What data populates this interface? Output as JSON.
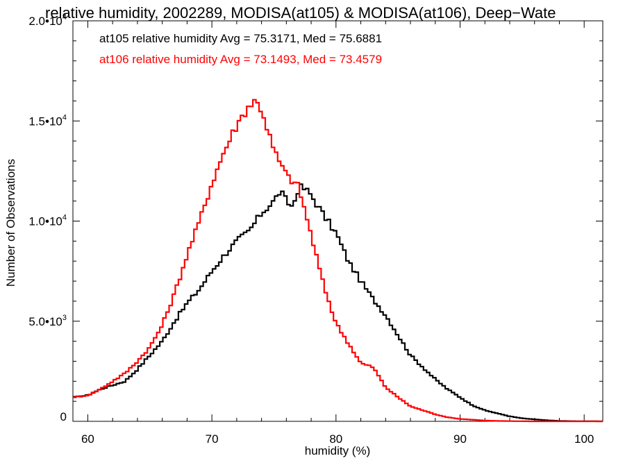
{
  "chart_data": {
    "type": "line",
    "style": "step histogram",
    "title": "relative humidity, 2002289, MODISA(at105) & MODISA(at106), Deep−Wate",
    "xlabel": "humidity (%)",
    "ylabel": "Number of Observations",
    "xlim": [
      58.8,
      101.5
    ],
    "ylim": [
      0,
      20000
    ],
    "x_ticks": [
      60,
      70,
      80,
      90,
      100
    ],
    "x_tick_labels": [
      "60",
      "70",
      "80",
      "90",
      "100"
    ],
    "y_ticks": [
      0,
      5000,
      10000,
      15000,
      20000
    ],
    "y_tick_labels": [
      {
        "mantissa": "0",
        "exp": ""
      },
      {
        "mantissa": "5.0•10",
        "exp": "3"
      },
      {
        "mantissa": "1.0•10",
        "exp": "4"
      },
      {
        "mantissa": "1.5•10",
        "exp": "4"
      },
      {
        "mantissa": "2.0•10",
        "exp": "4"
      }
    ],
    "grid": false,
    "legend_placement": "top-left",
    "annotations": [
      {
        "text": "at105 relative humidity Avg = 75.3171, Med = 75.6881",
        "color": "#000000"
      },
      {
        "text": "at106 relative humidity Avg = 73.1493, Med = 73.4579",
        "color": "#ff0000"
      }
    ],
    "series": [
      {
        "name": "at105",
        "color": "#000000",
        "x": [
          58.8,
          60,
          61,
          62,
          63,
          64,
          65,
          66,
          67,
          68,
          69,
          70,
          71,
          72,
          73,
          74,
          75,
          75.5,
          76,
          76.5,
          77,
          77.5,
          78,
          79,
          80,
          81,
          82,
          83,
          84,
          85,
          86,
          87,
          88,
          89,
          90,
          91,
          92,
          93,
          94,
          95,
          96,
          97,
          98,
          99,
          100,
          101.5
        ],
        "values": [
          1200,
          1300,
          1600,
          1800,
          2000,
          2600,
          3300,
          4000,
          5000,
          5900,
          6600,
          7500,
          8300,
          9000,
          9500,
          10400,
          11000,
          11500,
          11000,
          10700,
          11700,
          11600,
          11300,
          10300,
          9400,
          8000,
          7000,
          6100,
          5300,
          4300,
          3300,
          2700,
          2100,
          1600,
          1200,
          800,
          550,
          400,
          250,
          150,
          100,
          50,
          20,
          10,
          5,
          0
        ]
      },
      {
        "name": "at106",
        "color": "#ff0000",
        "x": [
          58.8,
          60,
          61,
          62,
          63,
          64,
          65,
          66,
          67,
          68,
          69,
          70,
          71,
          72,
          73,
          73.5,
          74,
          75,
          76,
          77,
          78,
          79,
          80,
          81,
          82,
          83,
          84,
          85,
          86,
          87,
          88,
          89,
          90,
          91,
          92,
          93,
          94,
          95,
          96,
          97,
          98,
          99,
          100,
          101.5
        ],
        "values": [
          1200,
          1300,
          1600,
          2000,
          2400,
          3000,
          3700,
          4800,
          6400,
          8300,
          10000,
          11900,
          13500,
          14800,
          15800,
          16000,
          15600,
          13500,
          12300,
          11700,
          9300,
          6800,
          4900,
          3900,
          2900,
          2700,
          1700,
          1200,
          750,
          550,
          350,
          200,
          120,
          80,
          40,
          20,
          10,
          5,
          0,
          0,
          0,
          0,
          0,
          0
        ]
      }
    ]
  }
}
